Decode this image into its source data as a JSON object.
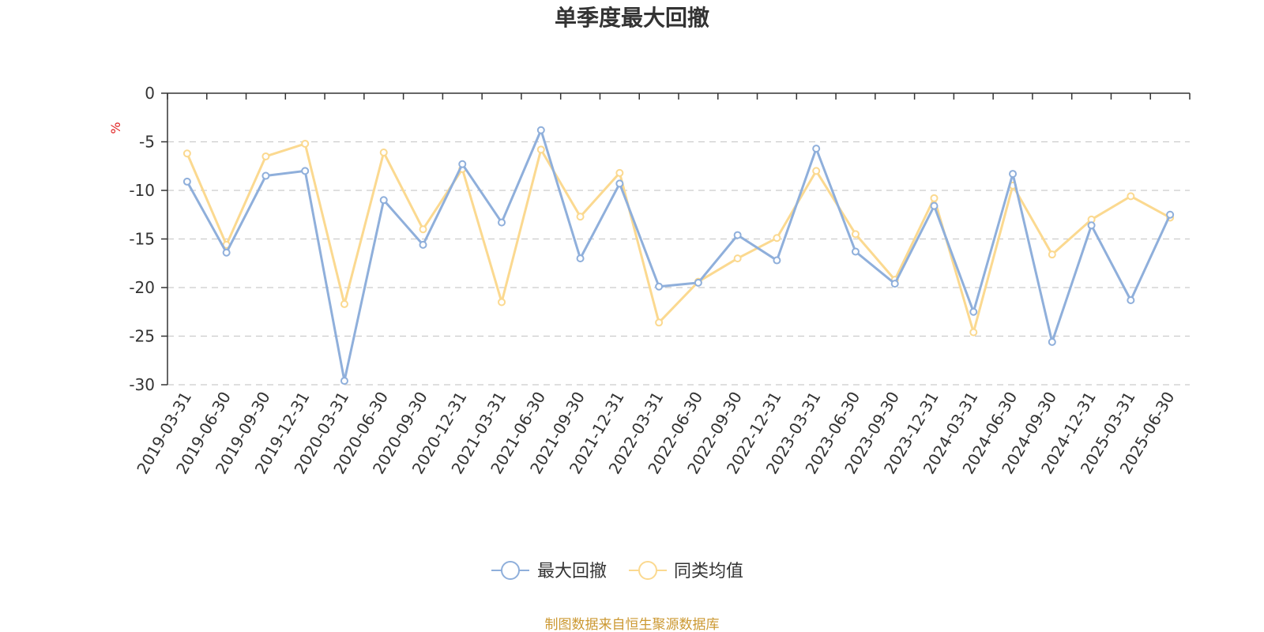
{
  "chart_data": {
    "type": "line",
    "title": "单季度最大回撤",
    "ylabel": "%",
    "ylim": [
      -30,
      0
    ],
    "yticks": [
      0,
      -5,
      -10,
      -15,
      -20,
      -25,
      -30
    ],
    "grid": true,
    "legend_position": "bottom",
    "categories": [
      "2019-03-31",
      "2019-06-30",
      "2019-09-30",
      "2019-12-31",
      "2020-03-31",
      "2020-06-30",
      "2020-09-30",
      "2020-12-31",
      "2021-03-31",
      "2021-06-30",
      "2021-09-30",
      "2021-12-31",
      "2022-03-31",
      "2022-06-30",
      "2022-09-30",
      "2022-12-31",
      "2023-03-31",
      "2023-06-30",
      "2023-09-30",
      "2023-12-31",
      "2024-03-31",
      "2024-06-30",
      "2024-09-30",
      "2024-12-31",
      "2025-03-31",
      "2025-06-30"
    ],
    "series": [
      {
        "name": "最大回撤",
        "color": "#8fafdb",
        "values": [
          -9.1,
          -16.4,
          -8.5,
          -8.0,
          -29.6,
          -11.0,
          -15.6,
          -7.3,
          -13.3,
          -3.8,
          -17.0,
          -9.3,
          -19.9,
          -19.5,
          -14.6,
          -17.2,
          -5.7,
          -16.3,
          -19.6,
          -11.6,
          -22.5,
          -8.3,
          -25.6,
          -13.6,
          -21.3,
          -12.5
        ]
      },
      {
        "name": "同类均值",
        "color": "#fbd990",
        "values": [
          -6.2,
          -15.6,
          -6.5,
          -5.2,
          -21.7,
          -6.1,
          -14.0,
          -7.8,
          -21.5,
          -5.8,
          -12.7,
          -8.2,
          -23.6,
          -19.4,
          -17.0,
          -14.9,
          -8.0,
          -14.5,
          -19.2,
          -10.8,
          -24.6,
          -9.5,
          -16.6,
          -13.0,
          -10.6,
          -12.8
        ]
      }
    ]
  },
  "colors": {
    "axis": "#333333",
    "grid": "#cccccc",
    "unit": "#e02020",
    "source": "#cc9933"
  },
  "source_text": "制图数据来自恒生聚源数据库"
}
